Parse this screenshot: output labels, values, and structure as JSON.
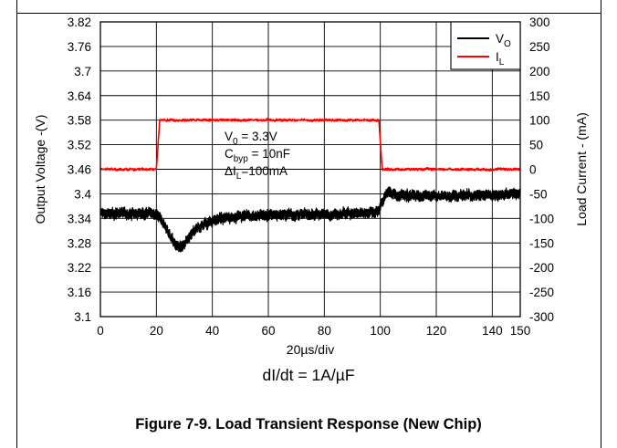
{
  "caption": "Figure 7-9. Load Transient Response (New Chip)",
  "rate_note": "dI/dt = 1A/µF",
  "chart_data": {
    "type": "line",
    "xlabel": "20µs/div",
    "xlim": [
      0,
      150
    ],
    "x_ticks": [
      "0",
      "20",
      "40",
      "60",
      "80",
      "100",
      "120",
      "140",
      "150"
    ],
    "x_tick_values": [
      0,
      20,
      40,
      60,
      80,
      100,
      120,
      140,
      150
    ],
    "ylabel_left": "Output Voltage -(V)",
    "ylim_left": [
      3.1,
      3.82
    ],
    "y_ticks_left": [
      "3.82",
      "3.76",
      "3.7",
      "3.64",
      "3.58",
      "3.52",
      "3.46",
      "3.4",
      "3.34",
      "3.28",
      "3.22",
      "3.16",
      "3.1"
    ],
    "ylabel_right": "Load Current - (mA)",
    "ylim_right": [
      -300,
      300
    ],
    "y_ticks_right": [
      "300",
      "250",
      "200",
      "150",
      "100",
      "50",
      "0",
      "-50",
      "-100",
      "-150",
      "-200",
      "-250",
      "-300"
    ],
    "grid": true,
    "legend_position": "top-right",
    "annotation": {
      "v0": {
        "base": "V",
        "sub": "0",
        "rest": " = 3.3V"
      },
      "cbyp": {
        "base": "C",
        "sub": "byp",
        "rest": " = 10nF"
      },
      "dil": {
        "base": "ΔI",
        "sub": "L",
        "rest": "=100mA"
      }
    },
    "series": [
      {
        "name": "VO",
        "name_base": "V",
        "name_sub": "O",
        "axis": "left",
        "color": "#000000",
        "noise_band": 0.022,
        "x": [
          0,
          19,
          21,
          23,
          25,
          27,
          29,
          31,
          33,
          36,
          40,
          50,
          60,
          70,
          80,
          90,
          96,
          99,
          100.5,
          101.5,
          102.5,
          104,
          108,
          120,
          130,
          140,
          150
        ],
        "y": [
          3.352,
          3.352,
          3.345,
          3.322,
          3.298,
          3.274,
          3.268,
          3.283,
          3.305,
          3.322,
          3.336,
          3.346,
          3.348,
          3.35,
          3.35,
          3.352,
          3.352,
          3.358,
          3.376,
          3.392,
          3.404,
          3.402,
          3.396,
          3.395,
          3.396,
          3.398,
          3.4
        ]
      },
      {
        "name": "IL",
        "name_base": "I",
        "name_sub": "L",
        "axis": "right",
        "color": "#ff0000",
        "noise_band": 4,
        "x": [
          0,
          20,
          21.2,
          99.5,
          100.7,
          150
        ],
        "y": [
          0,
          0,
          100,
          100,
          0,
          0
        ]
      }
    ]
  }
}
